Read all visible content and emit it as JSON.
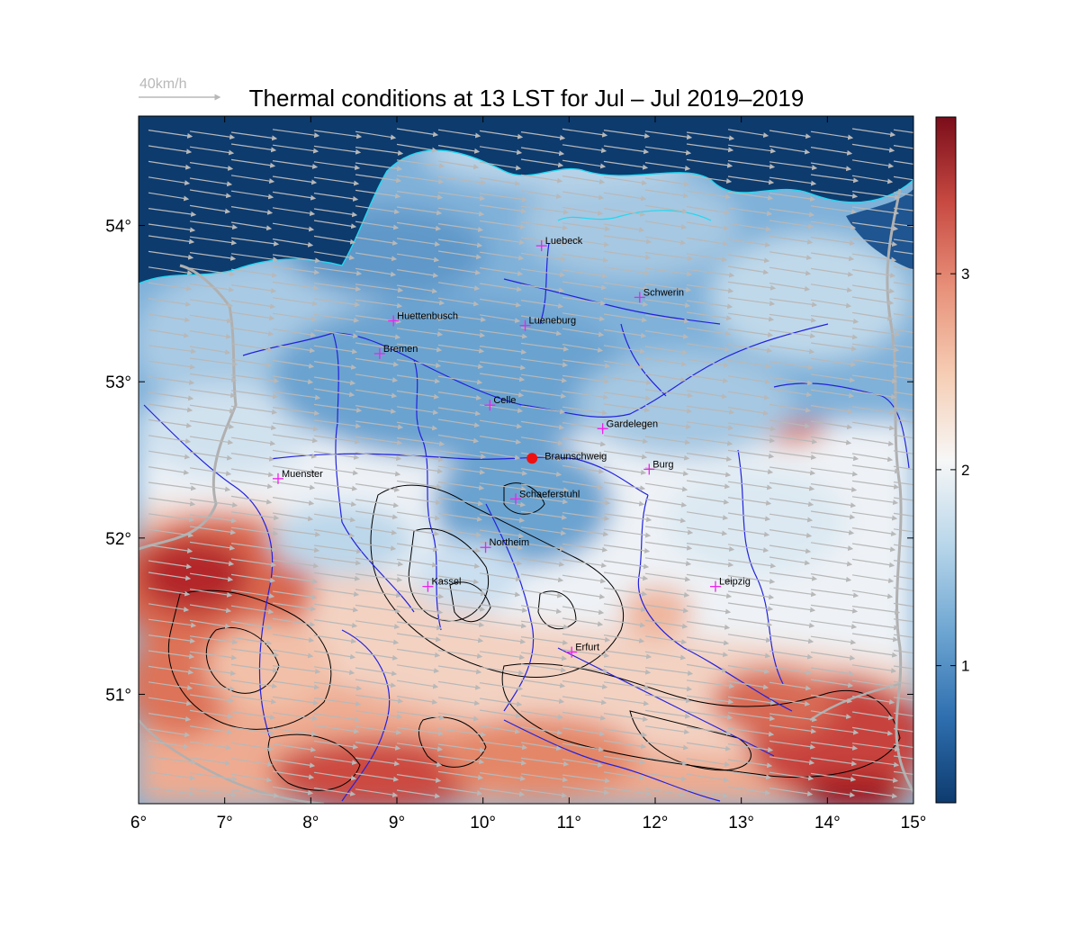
{
  "title": "Thermal conditions at 13 LST for Jul – Jul  2019–2019",
  "wind_reference": {
    "label": "40km/h",
    "arrow_color": "#b8b8b8"
  },
  "map": {
    "lon_range": [
      6,
      15
    ],
    "lat_range": [
      50.3,
      54.7
    ],
    "x_ticks": [
      {
        "value": 6,
        "label": "6°"
      },
      {
        "value": 7,
        "label": "7°"
      },
      {
        "value": 8,
        "label": "8°"
      },
      {
        "value": 9,
        "label": "9°"
      },
      {
        "value": 10,
        "label": "10°"
      },
      {
        "value": 11,
        "label": "11°"
      },
      {
        "value": 12,
        "label": "12°"
      },
      {
        "value": 13,
        "label": "13°"
      },
      {
        "value": 14,
        "label": "14°"
      },
      {
        "value": 15,
        "label": "15°"
      }
    ],
    "y_ticks": [
      {
        "value": 51,
        "label": "51°"
      },
      {
        "value": 52,
        "label": "52°"
      },
      {
        "value": 53,
        "label": "53°"
      },
      {
        "value": 54,
        "label": "54°"
      }
    ],
    "colors": {
      "sea": "#0d3b6e",
      "cold": "#4a8cc4",
      "neutral": "#f4f4f4",
      "warm": "#e07b5a",
      "hot": "#a3141f",
      "rivers": "#2222dd",
      "coastline": "#22d8f0",
      "borders": "#b0b0b0",
      "terrain_contours": "#000000",
      "city_marker": "#ee22ee",
      "highlight_marker": "#ee1111"
    },
    "cities": [
      {
        "name": "Luebeck",
        "lon": 10.68,
        "lat": 53.87
      },
      {
        "name": "Schwerin",
        "lon": 11.82,
        "lat": 53.54
      },
      {
        "name": "Huettenbusch",
        "lon": 8.96,
        "lat": 53.39
      },
      {
        "name": "Lueneburg",
        "lon": 10.49,
        "lat": 53.36
      },
      {
        "name": "Bremen",
        "lon": 8.8,
        "lat": 53.18
      },
      {
        "name": "Celle",
        "lon": 10.08,
        "lat": 52.85
      },
      {
        "name": "Gardelegen",
        "lon": 11.39,
        "lat": 52.7
      },
      {
        "name": "Burg",
        "lon": 11.93,
        "lat": 52.44
      },
      {
        "name": "Muenster",
        "lon": 7.62,
        "lat": 52.38
      },
      {
        "name": "Schaeferstuhl",
        "lon": 10.38,
        "lat": 52.25
      },
      {
        "name": "Northeim",
        "lon": 10.03,
        "lat": 51.94
      },
      {
        "name": "Kassel",
        "lon": 9.36,
        "lat": 51.69
      },
      {
        "name": "Leipzig",
        "lon": 12.7,
        "lat": 51.69
      },
      {
        "name": "Erfurt",
        "lon": 11.03,
        "lat": 51.27
      }
    ],
    "highlight": {
      "name": "Braunschweig",
      "lon": 10.57,
      "lat": 52.51
    }
  },
  "colorbar": {
    "range": [
      0.3,
      3.8
    ],
    "ticks": [
      {
        "value": 1,
        "label": "1"
      },
      {
        "value": 2,
        "label": "2"
      },
      {
        "value": 3,
        "label": "3"
      }
    ],
    "stops": [
      "#0d3b6e",
      "#2f6fb0",
      "#6ea6d2",
      "#b8d6ea",
      "#f7f7f7",
      "#f6cdb4",
      "#e8917a",
      "#c84a42",
      "#7a0d1a"
    ]
  }
}
